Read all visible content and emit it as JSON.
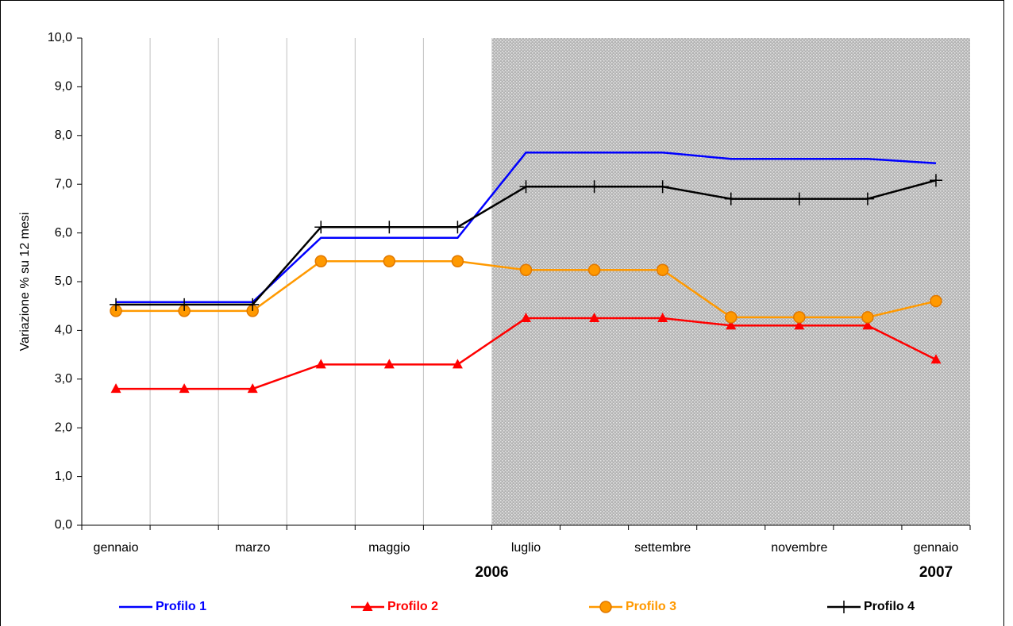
{
  "chart_data": {
    "type": "line",
    "y_label": "Variazione % su 12 mesi",
    "categories": [
      "gennaio",
      null,
      "marzo",
      null,
      "maggio",
      null,
      "luglio",
      null,
      "settembre",
      null,
      "novembre",
      null,
      "gennaio"
    ],
    "year_labels": [
      "2006",
      "2007"
    ],
    "ylim": [
      0,
      10
    ],
    "yticks": [
      {
        "value": 0,
        "label": "0,0"
      },
      {
        "value": 1,
        "label": "1,0"
      },
      {
        "value": 2,
        "label": "2,0"
      },
      {
        "value": 3,
        "label": "3,0"
      },
      {
        "value": 4,
        "label": "4,0"
      },
      {
        "value": 5,
        "label": "5,0"
      },
      {
        "value": 6,
        "label": "6,0"
      },
      {
        "value": 7,
        "label": "7,0"
      },
      {
        "value": 8,
        "label": "8,0"
      },
      {
        "value": 9,
        "label": "9,0"
      },
      {
        "value": 10,
        "label": "10,0"
      }
    ],
    "grid": true,
    "series": [
      {
        "name": "Profilo 1",
        "color": "#0000ff",
        "marker": "none",
        "values": [
          4.58,
          4.58,
          4.58,
          5.9,
          5.9,
          5.9,
          7.65,
          7.65,
          7.65,
          7.52,
          7.52,
          7.52,
          7.43
        ]
      },
      {
        "name": "Profilo 2",
        "color": "#ff0000",
        "marker": "triangle",
        "values": [
          2.8,
          2.8,
          2.8,
          3.3,
          3.3,
          3.3,
          4.25,
          4.25,
          4.25,
          4.1,
          4.1,
          4.1,
          3.4
        ]
      },
      {
        "name": "Profilo 3",
        "color": "#ff9900",
        "marker": "circle",
        "values": [
          4.4,
          4.4,
          4.4,
          5.42,
          5.42,
          5.42,
          5.24,
          5.24,
          5.24,
          4.27,
          4.27,
          4.27,
          4.6
        ]
      },
      {
        "name": "Profilo 4",
        "color": "#000000",
        "marker": "plus",
        "values": [
          4.53,
          4.53,
          4.53,
          6.12,
          6.12,
          6.12,
          6.95,
          6.95,
          6.95,
          6.7,
          6.7,
          6.7,
          7.08
        ]
      }
    ]
  }
}
